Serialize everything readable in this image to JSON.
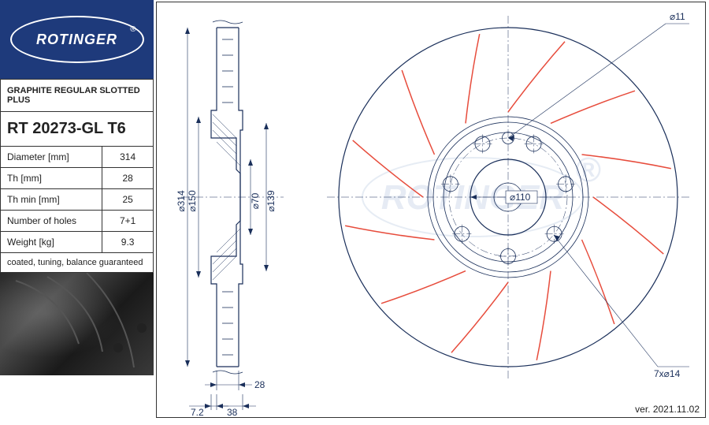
{
  "brand": {
    "name": "ROTINGER",
    "reg": "®"
  },
  "product_line": "GRAPHITE REGULAR SLOTTED PLUS",
  "part_number": "RT 20273-GL T6",
  "specs": [
    {
      "label": "Diameter [mm]",
      "value": "314"
    },
    {
      "label": "Th [mm]",
      "value": "28"
    },
    {
      "label": "Th min [mm]",
      "value": "25"
    },
    {
      "label": "Number of holes",
      "value": "7+1"
    },
    {
      "label": "Weight [kg]",
      "value": "9.3"
    }
  ],
  "footer_note": "coated, tuning, balance guaranteed",
  "version": "ver. 2021.11.02",
  "side_view": {
    "dims": {
      "d314": "⌀314",
      "d150": "⌀150",
      "d70": "⌀70",
      "d139": "⌀139",
      "t28": "28",
      "off7_2": "7.2",
      "off38": "38"
    }
  },
  "front_view": {
    "callouts": {
      "d11": "⌀11",
      "holes": "7x⌀14",
      "pcd": "⌀110"
    },
    "outer_d": 314,
    "inner_d": 150,
    "hub_d": 70,
    "hat_d": 139,
    "pcd": 110,
    "hole_count": 7,
    "hole_d": 14,
    "extra_hole_d": 11,
    "slot_count": 12,
    "colors": {
      "line": "#1a2f5a",
      "slot": "#e74c3c",
      "watermark": "#b8c8e0"
    }
  },
  "watermark": "ROTINGER"
}
